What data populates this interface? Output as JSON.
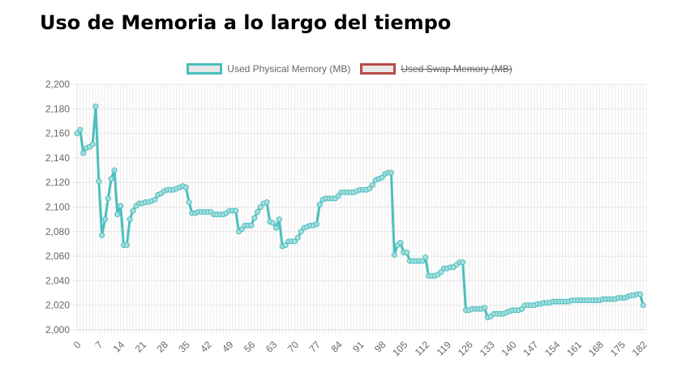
{
  "title": "Uso de Memoria a lo largo del tiempo",
  "chart_data": {
    "type": "line",
    "title": "Uso de Memoria a lo largo del tiempo",
    "xlabel": "",
    "ylabel": "",
    "xlim": [
      0,
      183
    ],
    "ylim": [
      2000,
      2200
    ],
    "x_ticks": [
      "0",
      "7",
      "14",
      "21",
      "28",
      "35",
      "42",
      "49",
      "56",
      "63",
      "70",
      "77",
      "84",
      "91",
      "98",
      "105",
      "112",
      "119",
      "126",
      "133",
      "140",
      "147",
      "154",
      "161",
      "168",
      "175",
      "182"
    ],
    "y_ticks": [
      "2,000",
      "2,020",
      "2,040",
      "2,060",
      "2,080",
      "2,100",
      "2,120",
      "2,140",
      "2,160",
      "2,180",
      "2,200"
    ],
    "grid": true,
    "legend_position": "top",
    "series": [
      {
        "name": "Used Physical Memory (MB)",
        "color": "#4bbfbf",
        "hidden": false,
        "values": [
          2160,
          2163,
          2144,
          2148,
          2149,
          2151,
          2182,
          2121,
          2077,
          2090,
          2107,
          2123,
          2130,
          2094,
          2101,
          2069,
          2069,
          2090,
          2097,
          2101,
          2103,
          2103,
          2104,
          2104,
          2105,
          2106,
          2110,
          2111,
          2113,
          2114,
          2114,
          2114,
          2115,
          2116,
          2117,
          2116,
          2104,
          2095,
          2095,
          2096,
          2096,
          2096,
          2096,
          2096,
          2094,
          2094,
          2094,
          2094,
          2095,
          2097,
          2097,
          2097,
          2080,
          2082,
          2085,
          2085,
          2085,
          2091,
          2096,
          2100,
          2103,
          2104,
          2088,
          2087,
          2083,
          2090,
          2068,
          2069,
          2072,
          2072,
          2072,
          2075,
          2080,
          2083,
          2084,
          2085,
          2085,
          2086,
          2102,
          2106,
          2107,
          2107,
          2107,
          2107,
          2109,
          2112,
          2112,
          2112,
          2112,
          2112,
          2113,
          2114,
          2114,
          2114,
          2115,
          2118,
          2122,
          2123,
          2124,
          2127,
          2128,
          2128,
          2061,
          2069,
          2071,
          2063,
          2063,
          2056,
          2056,
          2056,
          2056,
          2056,
          2059,
          2044,
          2044,
          2044,
          2045,
          2047,
          2050,
          2050,
          2051,
          2051,
          2053,
          2055,
          2055,
          2016,
          2016,
          2017,
          2017,
          2017,
          2017,
          2018,
          2010,
          2011,
          2013,
          2013,
          2013,
          2013,
          2014,
          2015,
          2016,
          2016,
          2016,
          2017,
          2020,
          2020,
          2020,
          2020,
          2021,
          2021,
          2022,
          2022,
          2022,
          2023,
          2023,
          2023,
          2023,
          2023,
          2023,
          2024,
          2024,
          2024,
          2024,
          2024,
          2024,
          2024,
          2024,
          2024,
          2024,
          2025,
          2025,
          2025,
          2025,
          2025,
          2026,
          2026,
          2026,
          2027,
          2028,
          2028,
          2029,
          2029,
          2020
        ]
      },
      {
        "name": "Used Swap Memory (MB)",
        "color": "#b94a48",
        "hidden": true,
        "values": []
      }
    ]
  }
}
